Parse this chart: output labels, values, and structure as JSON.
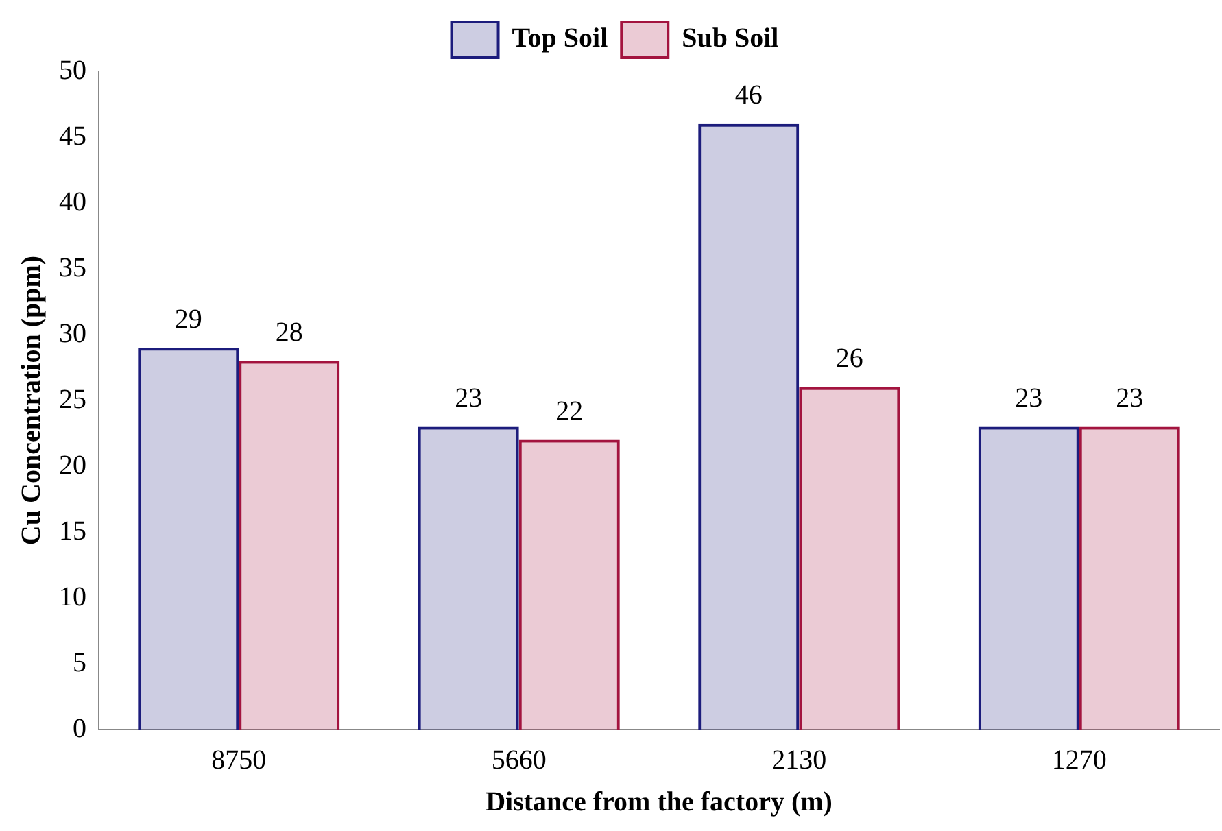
{
  "chart_data": {
    "type": "bar",
    "xlabel": "Distance from the factory (m)",
    "ylabel": "Cu Concentration (ppm)",
    "categories": [
      "8750",
      "5660",
      "2130",
      "1270"
    ],
    "series": [
      {
        "name": "Top Soil",
        "color": "#1c1c7c",
        "values": [
          29,
          23,
          46,
          23
        ]
      },
      {
        "name": "Sub Soil",
        "color": "#a3143f",
        "values": [
          28,
          22,
          26,
          23
        ]
      }
    ],
    "ylim": [
      0,
      50
    ],
    "yticks": [
      0,
      5,
      10,
      15,
      20,
      25,
      30,
      35,
      40,
      45,
      50
    ],
    "grid": false,
    "legend": "top",
    "data_labels": true
  }
}
